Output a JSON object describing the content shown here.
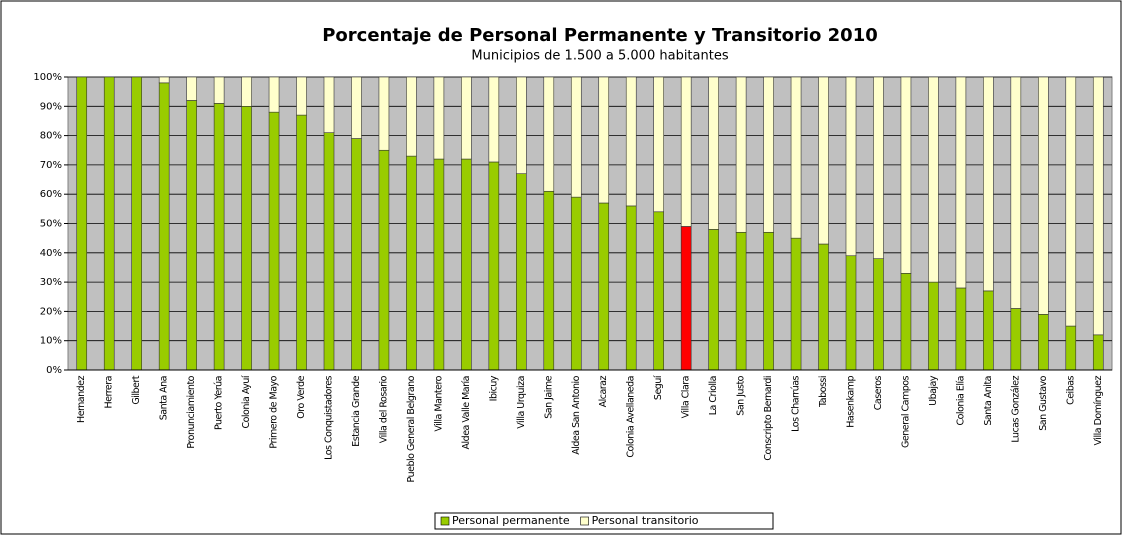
{
  "chart_data": {
    "type": "stacked_bar",
    "title": "Porcentaje de Personal Permanente y Transitorio 2010",
    "subtitle": "Municipios de 1.500 a 5.000 habitantes",
    "categories": [
      "Hernandez",
      "Herrera",
      "Gilbert",
      "Santa Ana",
      "Pronunciamiento",
      "Puerto Yerúa",
      "Colonia Ayuí",
      "Primero de Mayo",
      "Oro Verde",
      "Los Conquistadores",
      "Estancia Grande",
      "Villa del Rosario",
      "Pueblo General Belgrano",
      "Villa Mantero",
      "Aldea Valle María",
      "Ibicuy",
      "Villa Urquiza",
      "San Jaime",
      "Aldea San Antonio",
      "Alcaraz",
      "Colonia Avellaneda",
      "Seguí",
      "Villa Clara",
      "La Criolla",
      "San Justo",
      "Conscripto Bernardi",
      "Los Charrúas",
      "Tabossi",
      "Hasenkamp",
      "Caseros",
      "General Campos",
      "Ubajay",
      "Colonia Elía",
      "Santa Anita",
      "Lucas González",
      "San Gustavo",
      "Ceibas",
      "Villa Domínguez"
    ],
    "series": [
      {
        "name": "Personal permanente",
        "color": "#99cc00",
        "values": [
          100,
          100,
          100,
          98,
          92,
          91,
          90,
          88,
          87,
          81,
          79,
          75,
          73,
          72,
          72,
          71,
          67,
          61,
          59,
          57,
          56,
          54,
          49,
          48,
          47,
          47,
          45,
          43,
          39,
          38,
          33,
          30,
          28,
          27,
          21,
          19,
          15,
          12
        ]
      },
      {
        "name": "Personal transitorio",
        "color": "#ffffcc",
        "values": [
          0,
          0,
          0,
          2,
          8,
          9,
          10,
          12,
          13,
          19,
          21,
          25,
          27,
          28,
          28,
          29,
          33,
          39,
          41,
          43,
          44,
          46,
          51,
          52,
          53,
          53,
          55,
          57,
          61,
          62,
          67,
          70,
          72,
          73,
          79,
          81,
          85,
          88
        ]
      }
    ],
    "highlight": {
      "index": 22,
      "color": "#ff0000"
    },
    "ylim": [
      0,
      100
    ],
    "yticks": [
      {
        "value": 0,
        "label": "0%"
      },
      {
        "value": 10,
        "label": "10%"
      },
      {
        "value": 20,
        "label": "20%"
      },
      {
        "value": 30,
        "label": "30%"
      },
      {
        "value": 40,
        "label": "40%"
      },
      {
        "value": 50,
        "label": "50%"
      },
      {
        "value": 60,
        "label": "60%"
      },
      {
        "value": 70,
        "label": "70%"
      },
      {
        "value": 80,
        "label": "80%"
      },
      {
        "value": 90,
        "label": "90%"
      },
      {
        "value": 100,
        "label": "100%"
      }
    ],
    "grid": true,
    "legend": "bottom",
    "plot_background": "#c0c0c0"
  }
}
